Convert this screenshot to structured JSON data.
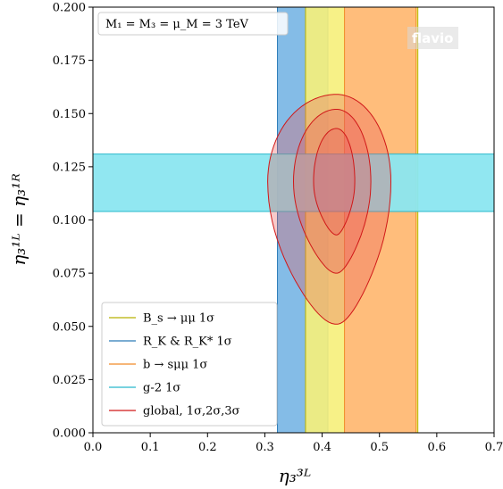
{
  "chart_data": {
    "type": "contour",
    "annotation": "M₁ = M₃ = μ_M = 3 TeV",
    "watermark": "flavio",
    "xlabel": "η₃³ᴸ",
    "ylabel": "η₃¹ᴸ = η₃¹ᴿ",
    "xlim": [
      0.0,
      0.7
    ],
    "ylim": [
      0.0,
      0.2
    ],
    "xticks": [
      "0.0",
      "0.1",
      "0.2",
      "0.3",
      "0.4",
      "0.5",
      "0.6",
      "0.7"
    ],
    "yticks": [
      "0.000",
      "0.025",
      "0.050",
      "0.075",
      "0.100",
      "0.125",
      "0.150",
      "0.175",
      "0.200"
    ],
    "grid": false,
    "legend_position": "bottom-left",
    "bands": [
      {
        "name": "B_s → μμ 1σ",
        "orientation": "vertical",
        "range": [
          0.371,
          0.567
        ],
        "fill": "#f6f07a",
        "edge": "#b8b000"
      },
      {
        "name": "R_K & R_K* 1σ",
        "orientation": "vertical",
        "range": [
          0.322,
          0.41
        ],
        "fill": "#7db8e6",
        "edge": "#2a7ab8"
      },
      {
        "name": "b → sμμ 1σ",
        "orientation": "vertical",
        "range": [
          0.439,
          0.564
        ],
        "fill": "#ffb97a",
        "edge": "#f08a28"
      },
      {
        "name": "g-2 1σ",
        "orientation": "horizontal",
        "range": [
          0.104,
          0.131
        ],
        "fill": "#8be6f0",
        "edge": "#28b8cc"
      }
    ],
    "global_fit": {
      "name": "global, 1σ,2σ,3σ",
      "center": [
        0.425,
        0.118
      ],
      "contours": [
        {
          "level": "1σ",
          "xrange": [
            0.385,
            0.457
          ],
          "yrange": [
            0.093,
            0.143
          ]
        },
        {
          "level": "2σ",
          "xrange": [
            0.35,
            0.485
          ],
          "yrange": [
            0.075,
            0.152
          ]
        },
        {
          "level": "3σ",
          "xrange": [
            0.305,
            0.52
          ],
          "yrange": [
            0.051,
            0.159
          ]
        }
      ],
      "fill": "#e85a5a",
      "edge": "#d01818"
    },
    "legend": [
      {
        "label": "B_s → μμ 1σ",
        "color": "#b8b000"
      },
      {
        "label": "R_K & R_K* 1σ",
        "color": "#2a7ab8"
      },
      {
        "label": "b → sμμ 1σ",
        "color": "#f08a28"
      },
      {
        "label": "g-2 1σ",
        "color": "#28b8cc"
      },
      {
        "label": "global, 1σ,2σ,3σ",
        "color": "#d01818"
      }
    ]
  }
}
